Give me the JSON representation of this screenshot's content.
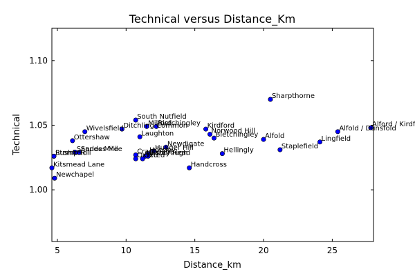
{
  "chart_data": {
    "type": "scatter",
    "title": "Technical versus Distance_Km",
    "xlabel": "Distance_km",
    "ylabel": "Technical",
    "xlim": [
      4.6,
      28.0
    ],
    "ylim": [
      0.96,
      1.125
    ],
    "xticks": [
      5,
      10,
      15,
      20,
      25
    ],
    "yticks": [
      1.0,
      1.05,
      1.1
    ],
    "xtick_labels": [
      "5",
      "10",
      "15",
      "20",
      "25"
    ],
    "ytick_labels": [
      "1.00",
      "1.05",
      "1.10"
    ],
    "grid": false,
    "marker_color": "#0000ff",
    "points": [
      {
        "x": 20.5,
        "y": 1.07,
        "label": "Sharpthorne"
      },
      {
        "x": 10.7,
        "y": 1.054,
        "label": "South Nutfield"
      },
      {
        "x": 9.7,
        "y": 1.047,
        "label": "Ditchling Common"
      },
      {
        "x": 11.5,
        "y": 1.049,
        "label": "Milford"
      },
      {
        "x": 12.2,
        "y": 1.049,
        "label": "Bletchingley"
      },
      {
        "x": 15.8,
        "y": 1.047,
        "label": "Kirdford"
      },
      {
        "x": 27.8,
        "y": 1.048,
        "label": "Alford / Kirdford"
      },
      {
        "x": 25.4,
        "y": 1.045,
        "label": "Alfold / Dunsfold"
      },
      {
        "x": 7.0,
        "y": 1.045,
        "label": "Wivelsfield"
      },
      {
        "x": 16.1,
        "y": 1.043,
        "label": "Norwood Hill"
      },
      {
        "x": 16.4,
        "y": 1.04,
        "label": "Bletchingley"
      },
      {
        "x": 11.0,
        "y": 1.041,
        "label": "Laughton"
      },
      {
        "x": 20.0,
        "y": 1.039,
        "label": "Alfold"
      },
      {
        "x": 6.1,
        "y": 1.038,
        "label": "Ottershaw"
      },
      {
        "x": 24.1,
        "y": 1.037,
        "label": "Lingfield"
      },
      {
        "x": 12.9,
        "y": 1.033,
        "label": "Newdigate"
      },
      {
        "x": 21.2,
        "y": 1.031,
        "label": "Staplefield"
      },
      {
        "x": 12.0,
        "y": 1.03,
        "label": "Hunger Hill"
      },
      {
        "x": 6.3,
        "y": 1.029,
        "label": "Sandes Mile"
      },
      {
        "x": 6.6,
        "y": 1.029,
        "label": "Sandes Mile"
      },
      {
        "x": 11.6,
        "y": 1.028,
        "label": "Horsley"
      },
      {
        "x": 17.0,
        "y": 1.028,
        "label": "Hellingly"
      },
      {
        "x": 10.7,
        "y": 1.027,
        "label": "Cranleigh"
      },
      {
        "x": 11.6,
        "y": 1.026,
        "label": "Hardy Head"
      },
      {
        "x": 11.4,
        "y": 1.026,
        "label": "Wisborough"
      },
      {
        "x": 4.75,
        "y": 1.026,
        "label": "Stomp Hill"
      },
      {
        "x": 4.75,
        "y": 1.026,
        "label": "Rushfield"
      },
      {
        "x": 10.7,
        "y": 1.024,
        "label": "Oxted"
      },
      {
        "x": 11.2,
        "y": 1.024,
        "label": "Oxted"
      },
      {
        "x": 14.6,
        "y": 1.017,
        "label": "Handcross"
      },
      {
        "x": 4.6,
        "y": 1.017,
        "label": "Kitsmead Lane"
      },
      {
        "x": 4.8,
        "y": 1.009,
        "label": "Newchapel"
      }
    ]
  }
}
